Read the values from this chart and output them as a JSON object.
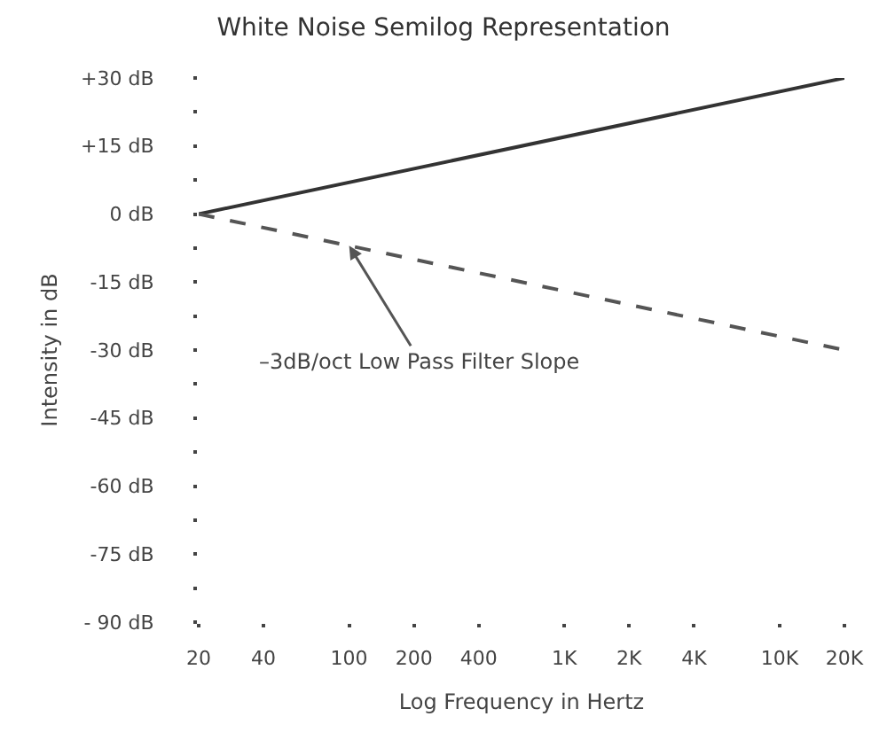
{
  "chart_data": {
    "type": "line",
    "title": "White Noise Semilog Representation",
    "xlabel": "Log Frequency in Hertz",
    "ylabel": "Intensity in dB",
    "log": "x",
    "x": [
      20,
      20000
    ],
    "series": [
      {
        "color": "#333333",
        "values": [
          0,
          30
        ],
        "line_style": "solid"
      },
      {
        "color": "#555555",
        "values": [
          0,
          -30
        ],
        "line_style": "dashed"
      }
    ],
    "xlim": [
      20,
      20000
    ],
    "xticks": [
      20,
      40,
      100,
      200,
      400,
      {
        "value": 1000,
        "label": "1K"
      },
      {
        "value": 2000,
        "label": "2K"
      },
      {
        "value": 4000,
        "label": "4K"
      },
      {
        "value": 10000,
        "label": "10K"
      },
      {
        "value": 20000,
        "label": "20K"
      }
    ],
    "ylim": [
      -90,
      30
    ],
    "yticks": [
      {
        "value": 30,
        "label": "+30 dB"
      },
      {
        "value": 22.5,
        "label": null
      },
      {
        "value": 15,
        "label": "+15 dB"
      },
      {
        "value": 7.5,
        "label": null
      },
      {
        "value": 0,
        "label": "0 dB"
      },
      {
        "value": -7.5,
        "label": null
      },
      {
        "value": -15,
        "label": "-15 dB"
      },
      {
        "value": -22.5,
        "label": null
      },
      {
        "value": -30,
        "label": "-30 dB"
      },
      {
        "value": -37.5,
        "label": null
      },
      {
        "value": -45,
        "label": "-45 dB"
      },
      {
        "value": -52.5,
        "label": null
      },
      {
        "value": -60,
        "label": "-60 dB"
      },
      {
        "value": -67.5,
        "label": null
      },
      {
        "value": -75,
        "label": "-75 dB"
      },
      {
        "value": -82.5,
        "label": null
      },
      {
        "value": -90,
        "label": "- 90 dB"
      }
    ],
    "annotations": [
      {
        "text": "–3dB/oct Low Pass Filter Slope",
        "x": 100,
        "y": -7
      }
    ],
    "grid": false,
    "marker": "none"
  }
}
